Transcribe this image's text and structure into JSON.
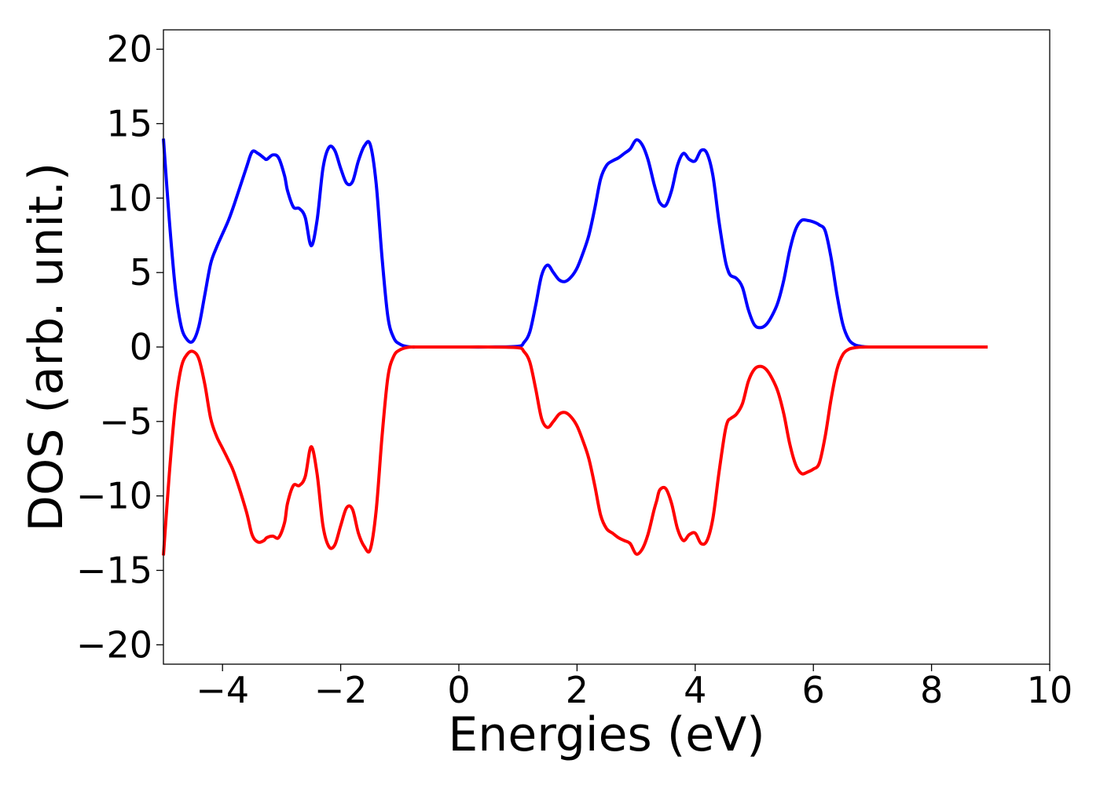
{
  "chart_data": {
    "type": "line",
    "title": "",
    "xlabel": "Energies (eV)",
    "ylabel": "DOS (arb. unit.)",
    "xlim": [
      -5,
      10
    ],
    "ylim": [
      -21.3,
      21.3
    ],
    "xticks": [
      -4,
      -2,
      0,
      2,
      4,
      6,
      8,
      10
    ],
    "xtick_labels": [
      "−4",
      "−2",
      "0",
      "2",
      "4",
      "6",
      "8",
      "10"
    ],
    "yticks": [
      -20,
      -15,
      -10,
      -5,
      0,
      5,
      10,
      15,
      20
    ],
    "ytick_labels": [
      "−20",
      "−15",
      "−10",
      "−5",
      "0",
      "5",
      "10",
      "15",
      "20"
    ],
    "grid": false,
    "legend": false,
    "series": [
      {
        "color": "#0000ff",
        "x": [
          -5.0,
          -4.9,
          -4.8,
          -4.7,
          -4.6,
          -4.5,
          -4.4,
          -4.3,
          -4.2,
          -4.1,
          -4.0,
          -3.9,
          -3.8,
          -3.6,
          -3.5,
          -3.4,
          -3.3,
          -3.25,
          -3.15,
          -3.05,
          -2.95,
          -2.9,
          -2.8,
          -2.7,
          -2.6,
          -2.5,
          -2.4,
          -2.3,
          -2.2,
          -2.1,
          -2.0,
          -1.9,
          -1.8,
          -1.7,
          -1.6,
          -1.5,
          -1.4,
          -1.3,
          -1.2,
          -1.1,
          -1.0,
          -0.9,
          -0.8,
          -0.7,
          -0.6,
          -0.5,
          0.0,
          0.5,
          1.0,
          1.1,
          1.2,
          1.3,
          1.4,
          1.5,
          1.6,
          1.7,
          1.8,
          1.9,
          2.0,
          2.1,
          2.2,
          2.3,
          2.4,
          2.5,
          2.6,
          2.7,
          2.8,
          2.9,
          3.0,
          3.1,
          3.2,
          3.3,
          3.35,
          3.4,
          3.5,
          3.6,
          3.7,
          3.8,
          3.9,
          4.0,
          4.1,
          4.2,
          4.3,
          4.4,
          4.5,
          4.55,
          4.6,
          4.7,
          4.8,
          4.9,
          5.0,
          5.1,
          5.2,
          5.3,
          5.4,
          5.5,
          5.6,
          5.7,
          5.8,
          5.9,
          6.0,
          6.1,
          6.2,
          6.3,
          6.4,
          6.5,
          6.6,
          6.7,
          6.8,
          6.9,
          7.0,
          7.1,
          7.2,
          7.5,
          8.0,
          8.5,
          8.95
        ],
        "y": [
          14.0,
          8.5,
          4.0,
          1.4,
          0.5,
          0.4,
          1.4,
          3.5,
          5.6,
          6.7,
          7.6,
          8.5,
          9.6,
          12.0,
          13.1,
          13.0,
          12.7,
          12.6,
          12.9,
          12.7,
          11.5,
          10.5,
          9.4,
          9.3,
          8.7,
          6.8,
          8.5,
          12.0,
          13.4,
          13.2,
          12.0,
          11.0,
          11.1,
          12.5,
          13.5,
          13.6,
          11.0,
          6.0,
          2.0,
          0.6,
          0.2,
          0.05,
          0.0,
          0.0,
          0.0,
          0.0,
          0.0,
          0.0,
          0.05,
          0.3,
          1.0,
          2.8,
          4.8,
          5.5,
          5.0,
          4.5,
          4.4,
          4.7,
          5.3,
          6.3,
          7.5,
          9.3,
          11.3,
          12.2,
          12.5,
          12.7,
          13.0,
          13.3,
          13.9,
          13.6,
          12.6,
          11.0,
          10.3,
          9.7,
          9.5,
          10.5,
          12.2,
          13.0,
          12.6,
          12.5,
          13.2,
          13.0,
          11.5,
          8.5,
          6.0,
          5.2,
          4.8,
          4.6,
          4.0,
          2.5,
          1.5,
          1.3,
          1.5,
          2.1,
          3.0,
          4.5,
          6.5,
          7.9,
          8.5,
          8.5,
          8.4,
          8.2,
          7.8,
          6.0,
          3.5,
          1.5,
          0.5,
          0.15,
          0.05,
          0.01,
          0.0,
          0.0,
          0.0,
          0.0,
          0.0,
          0.0,
          0.0
        ]
      },
      {
        "color": "#ff0000",
        "x": [
          -5.0,
          -4.9,
          -4.8,
          -4.7,
          -4.6,
          -4.5,
          -4.4,
          -4.3,
          -4.2,
          -4.1,
          -4.0,
          -3.9,
          -3.8,
          -3.6,
          -3.5,
          -3.4,
          -3.3,
          -3.25,
          -3.15,
          -3.05,
          -2.95,
          -2.9,
          -2.8,
          -2.7,
          -2.6,
          -2.5,
          -2.4,
          -2.3,
          -2.2,
          -2.1,
          -2.0,
          -1.9,
          -1.8,
          -1.7,
          -1.6,
          -1.5,
          -1.4,
          -1.3,
          -1.2,
          -1.1,
          -1.0,
          -0.9,
          -0.8,
          -0.7,
          -0.6,
          -0.5,
          0.0,
          0.5,
          1.0,
          1.1,
          1.2,
          1.3,
          1.4,
          1.5,
          1.6,
          1.7,
          1.8,
          1.9,
          2.0,
          2.1,
          2.2,
          2.3,
          2.4,
          2.5,
          2.6,
          2.7,
          2.8,
          2.9,
          3.0,
          3.1,
          3.2,
          3.3,
          3.35,
          3.4,
          3.5,
          3.6,
          3.7,
          3.8,
          3.9,
          4.0,
          4.1,
          4.2,
          4.3,
          4.4,
          4.5,
          4.55,
          4.6,
          4.7,
          4.8,
          4.9,
          5.0,
          5.1,
          5.2,
          5.3,
          5.4,
          5.5,
          5.6,
          5.7,
          5.8,
          5.9,
          6.0,
          6.1,
          6.2,
          6.3,
          6.4,
          6.5,
          6.6,
          6.7,
          6.8,
          6.9,
          7.0,
          7.1,
          7.2,
          7.5,
          8.0,
          8.5,
          8.95
        ],
        "y": [
          -14.0,
          -8.5,
          -4.0,
          -1.4,
          -0.5,
          -0.3,
          -0.8,
          -2.5,
          -4.8,
          -6.0,
          -6.8,
          -7.6,
          -8.5,
          -11.0,
          -12.6,
          -13.1,
          -13.0,
          -12.8,
          -12.7,
          -12.8,
          -11.8,
          -10.5,
          -9.3,
          -9.3,
          -8.7,
          -6.7,
          -8.5,
          -12.0,
          -13.4,
          -13.3,
          -12.0,
          -10.8,
          -10.9,
          -12.5,
          -13.4,
          -13.6,
          -11.0,
          -6.0,
          -2.0,
          -0.6,
          -0.2,
          -0.05,
          0.0,
          0.0,
          0.0,
          0.0,
          0.0,
          0.0,
          -0.05,
          -0.3,
          -1.0,
          -2.8,
          -4.8,
          -5.4,
          -5.0,
          -4.5,
          -4.4,
          -4.7,
          -5.3,
          -6.3,
          -7.5,
          -9.3,
          -11.3,
          -12.2,
          -12.5,
          -12.8,
          -13.0,
          -13.2,
          -13.9,
          -13.6,
          -12.6,
          -11.0,
          -10.3,
          -9.6,
          -9.5,
          -10.5,
          -12.2,
          -13.0,
          -12.6,
          -12.5,
          -13.2,
          -13.0,
          -11.5,
          -8.5,
          -5.8,
          -5.0,
          -4.8,
          -4.5,
          -3.8,
          -2.3,
          -1.5,
          -1.3,
          -1.5,
          -2.1,
          -3.0,
          -4.5,
          -6.5,
          -7.9,
          -8.5,
          -8.4,
          -8.2,
          -7.8,
          -6.0,
          -3.5,
          -1.5,
          -0.5,
          -0.15,
          -0.05,
          -0.01,
          0.0,
          0.0,
          0.0,
          0.0,
          0.0,
          0.0,
          0.0,
          0.0
        ]
      }
    ]
  }
}
